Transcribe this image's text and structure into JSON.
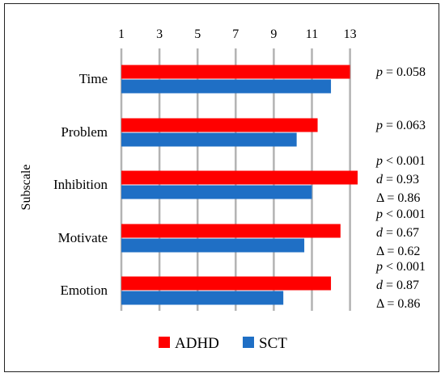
{
  "chart_data": {
    "type": "bar",
    "orientation": "horizontal",
    "ylabel": "Subscale",
    "xlim": [
      1,
      13.5
    ],
    "xticks": [
      1,
      3,
      5,
      7,
      9,
      11,
      13
    ],
    "tick_position": "top",
    "grid": true,
    "legend_position": "bottom",
    "categories": [
      "Time",
      "Problem",
      "Inhibition",
      "Motivate",
      "Emotion"
    ],
    "series": [
      {
        "name": "ADHD",
        "color": "#ff0000",
        "values": [
          13.0,
          11.3,
          13.4,
          12.5,
          12.0
        ]
      },
      {
        "name": "SCT",
        "color": "#1f6fc5",
        "values": [
          12.0,
          10.2,
          11.0,
          10.6,
          9.5
        ]
      }
    ],
    "annotations": [
      {
        "category": "Time",
        "lines": [
          {
            "sym": "p",
            "text": " = 0.058"
          }
        ]
      },
      {
        "category": "Problem",
        "lines": [
          {
            "sym": "p",
            "text": " = 0.063"
          }
        ]
      },
      {
        "category": "Inhibition",
        "lines": [
          {
            "sym": "p",
            "text": " < 0.001"
          },
          {
            "sym": "d",
            "text": " = 0.93"
          },
          {
            "sym": "Δ",
            "text": " = 0.86"
          }
        ]
      },
      {
        "category": "Motivate",
        "lines": [
          {
            "sym": "p",
            "text": " < 0.001"
          },
          {
            "sym": "d",
            "text": " = 0.67"
          },
          {
            "sym": "Δ",
            "text": " = 0.62"
          }
        ]
      },
      {
        "category": "Emotion",
        "lines": [
          {
            "sym": "p",
            "text": " < 0.001"
          },
          {
            "sym": "d",
            "text": " = 0.87"
          },
          {
            "sym": "Δ",
            "text": " = 0.86"
          }
        ]
      }
    ]
  }
}
